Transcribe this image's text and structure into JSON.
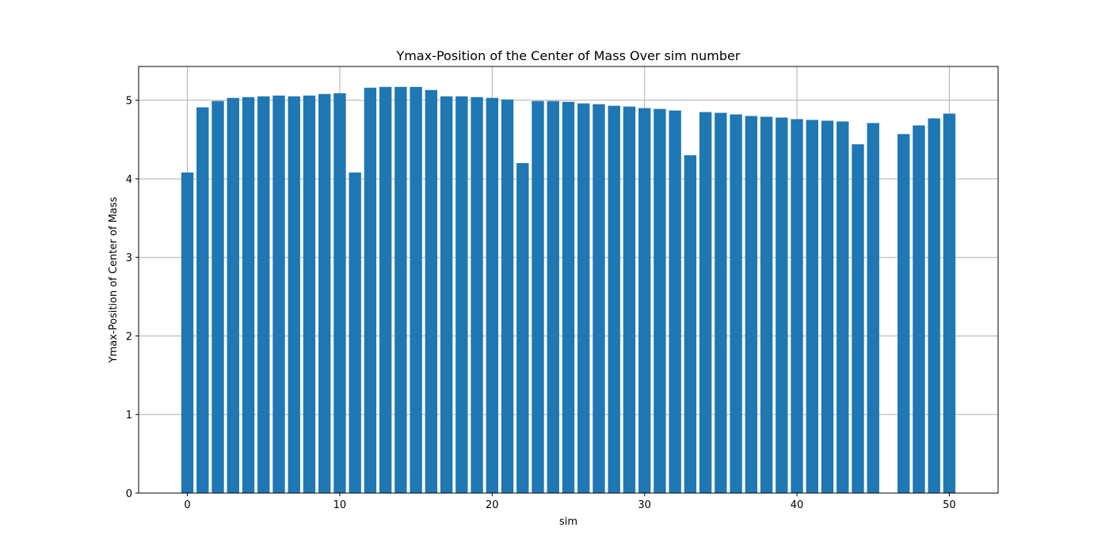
{
  "chart_data": {
    "type": "bar",
    "title": "Ymax-Position of the Center of Mass Over sim number",
    "xlabel": "sim",
    "ylabel": "Ymax-Position of Center of Mass",
    "xlim": [
      -3.2,
      53.2
    ],
    "ylim": [
      0,
      5.43
    ],
    "xticks": [
      0,
      10,
      20,
      30,
      40,
      50
    ],
    "yticks": [
      0,
      1,
      2,
      3,
      4,
      5
    ],
    "grid": true,
    "bar_color": "#1f77b4",
    "x": [
      0,
      1,
      2,
      3,
      4,
      5,
      6,
      7,
      8,
      9,
      10,
      11,
      12,
      13,
      14,
      15,
      16,
      17,
      18,
      19,
      20,
      21,
      22,
      23,
      24,
      25,
      26,
      27,
      28,
      29,
      30,
      31,
      32,
      33,
      34,
      35,
      36,
      37,
      38,
      39,
      40,
      41,
      42,
      43,
      44,
      45,
      47,
      48,
      49,
      50
    ],
    "values": [
      4.08,
      4.91,
      4.99,
      5.03,
      5.04,
      5.05,
      5.06,
      5.05,
      5.06,
      5.08,
      5.09,
      4.08,
      5.16,
      5.17,
      5.17,
      5.17,
      5.13,
      5.05,
      5.05,
      5.04,
      5.03,
      5.01,
      4.2,
      4.99,
      4.99,
      4.98,
      4.96,
      4.95,
      4.93,
      4.92,
      4.9,
      4.89,
      4.87,
      4.3,
      4.85,
      4.84,
      4.82,
      4.8,
      4.79,
      4.78,
      4.76,
      4.75,
      4.74,
      4.73,
      4.44,
      4.71,
      4.57,
      4.68,
      4.77,
      4.83
    ]
  }
}
